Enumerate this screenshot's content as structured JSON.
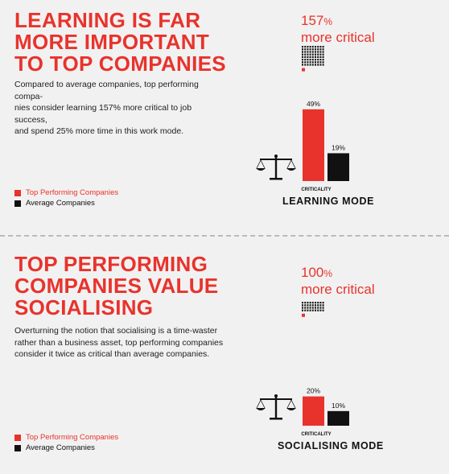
{
  "sections": [
    {
      "headline": [
        "LEARNING IS FAR",
        "MORE IMPORTANT",
        "TO TOP COMPANIES"
      ],
      "body": [
        "Compared to average companies, top performing compa-",
        "nies consider learning 157% more critical to job success,",
        "and spend 25% more time in this work mode."
      ],
      "callout_value": "157",
      "callout_unit": "%",
      "callout_text": "more critical",
      "legend": [
        "Top Performing Companies",
        "Average Companies"
      ],
      "mode_label": "LEARNING MODE",
      "axis_label": "CRITICALITY"
    },
    {
      "headline": [
        "TOP PERFORMING",
        "COMPANIES VALUE",
        "SOCIALISING"
      ],
      "body": [
        "Overturning the notion that socialising is a time-waster",
        "rather than a business asset, top performing companies",
        "consider it twice as critical than average companies."
      ],
      "callout_value": "100",
      "callout_unit": "%",
      "callout_text": "more critical",
      "legend": [
        "Top Performing Companies",
        "Average Companies"
      ],
      "mode_label": "SOCIALISING MODE",
      "axis_label": "CRITICALITY"
    }
  ],
  "colors": {
    "accent": "#e8332c",
    "dark": "#111111",
    "background": "#f1f1f1"
  },
  "icons": [
    "balance-scale-icon",
    "grid-pictogram-icon"
  ],
  "chart_data": [
    {
      "type": "bar",
      "categories": [
        "CRITICALITY"
      ],
      "series": [
        {
          "name": "Top Performing Companies",
          "values": [
            49
          ],
          "labels": [
            "49%"
          ],
          "color": "#e8332c"
        },
        {
          "name": "Average Companies",
          "values": [
            19
          ],
          "labels": [
            "19%"
          ],
          "color": "#111111"
        }
      ],
      "ylim": [
        0,
        50
      ],
      "title": "LEARNING MODE"
    },
    {
      "type": "bar",
      "categories": [
        "CRITICALITY"
      ],
      "series": [
        {
          "name": "Top Performing Companies",
          "values": [
            20
          ],
          "labels": [
            "20%"
          ],
          "color": "#e8332c"
        },
        {
          "name": "Average Companies",
          "values": [
            10
          ],
          "labels": [
            "10%"
          ],
          "color": "#111111"
        }
      ],
      "ylim": [
        0,
        50
      ],
      "title": "SOCIALISING MODE"
    }
  ]
}
